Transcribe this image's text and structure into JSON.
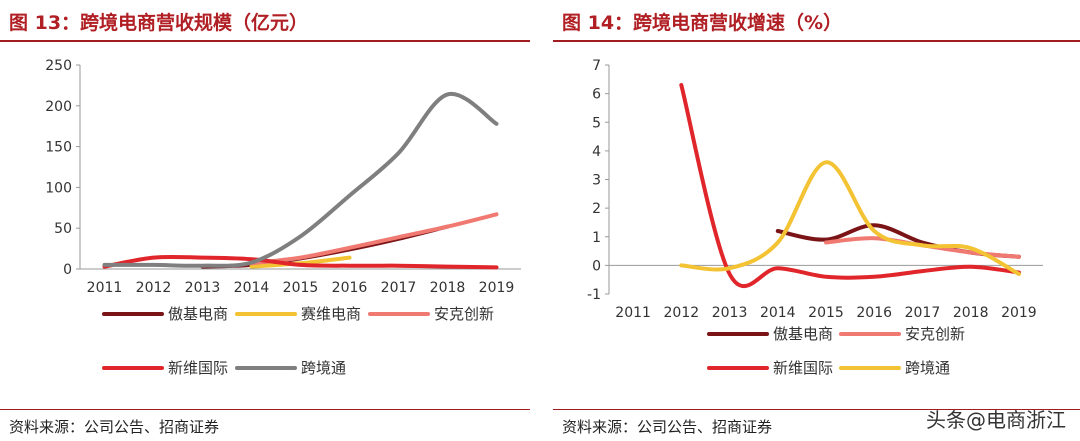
{
  "watermark": "头条@电商浙江",
  "colors": {
    "title": "#b01f24",
    "aoji": "#7a1416",
    "saiwei": "#f3c334",
    "anke": "#f07a72",
    "xinwei": "#e0262b",
    "kuajingtong": "#7f7f7f"
  },
  "chart_data": [
    {
      "type": "line",
      "title": "图 13：跨境电商营收规模（亿元）",
      "source": "资料来源：公司公告、招商证券",
      "categories": [
        "2011",
        "2012",
        "2013",
        "2014",
        "2015",
        "2016",
        "2017",
        "2018",
        "2019"
      ],
      "ylim": [
        0,
        250
      ],
      "yticks": [
        "0",
        "50",
        "100",
        "150",
        "200",
        "250"
      ],
      "grid": false,
      "legend_position": "bottom",
      "series": [
        {
          "name": "傲基电商",
          "color": "#7a1416",
          "values": [
            null,
            null,
            3,
            5,
            13,
            24,
            37,
            52,
            null
          ]
        },
        {
          "name": "赛维电商",
          "color": "#f3c334",
          "values": [
            null,
            null,
            null,
            3,
            7,
            14,
            null,
            null,
            null
          ]
        },
        {
          "name": "安克创新",
          "color": "#f07a72",
          "values": [
            null,
            null,
            null,
            7,
            14,
            26,
            39,
            52,
            67
          ]
        },
        {
          "name": "新维国际",
          "color": "#e0262b",
          "values": [
            3,
            14,
            14,
            12,
            5,
            4,
            4,
            3,
            2
          ]
        },
        {
          "name": "跨境通",
          "color": "#7f7f7f",
          "values": [
            5,
            5,
            4,
            8,
            40,
            90,
            142,
            214,
            178
          ]
        }
      ],
      "legend": [
        {
          "label": "傲基电商",
          "color": "#7a1416"
        },
        {
          "label": "赛维电商",
          "color": "#f3c334"
        },
        {
          "label": "安克创新",
          "color": "#f07a72"
        },
        {
          "label": "新维国际",
          "color": "#e0262b"
        },
        {
          "label": "跨境通",
          "color": "#7f7f7f"
        }
      ]
    },
    {
      "type": "line",
      "title": "图 14：跨境电商营收增速（%）",
      "source": "资料来源：公司公告、招商证券",
      "categories": [
        "2011",
        "2012",
        "2013",
        "2014",
        "2015",
        "2016",
        "2017",
        "2018",
        "2019"
      ],
      "ylim": [
        -1,
        7
      ],
      "yticks": [
        "-1",
        "0",
        "1",
        "2",
        "3",
        "4",
        "5",
        "6",
        "7"
      ],
      "grid": false,
      "legend_position": "bottom",
      "series": [
        {
          "name": "傲基电商",
          "color": "#7a1416",
          "values": [
            null,
            null,
            null,
            1.2,
            0.9,
            1.4,
            0.8,
            0.45,
            0.3
          ]
        },
        {
          "name": "安克创新",
          "color": "#f07a72",
          "values": [
            null,
            null,
            null,
            null,
            0.8,
            0.95,
            0.7,
            0.45,
            0.3
          ]
        },
        {
          "name": "新维国际",
          "color": "#e0262b",
          "values": [
            null,
            6.3,
            -0.3,
            -0.1,
            -0.4,
            -0.4,
            -0.2,
            -0.05,
            -0.25
          ]
        },
        {
          "name": "跨境通",
          "color": "#f3c334",
          "values": [
            null,
            0.0,
            -0.1,
            0.8,
            3.6,
            1.2,
            0.7,
            0.6,
            -0.3
          ]
        }
      ],
      "legend": [
        {
          "label": "傲基电商",
          "color": "#7a1416"
        },
        {
          "label": "安克创新",
          "color": "#f07a72"
        },
        {
          "label": "新维国际",
          "color": "#e0262b"
        },
        {
          "label": "跨境通",
          "color": "#f3c334"
        }
      ]
    }
  ]
}
